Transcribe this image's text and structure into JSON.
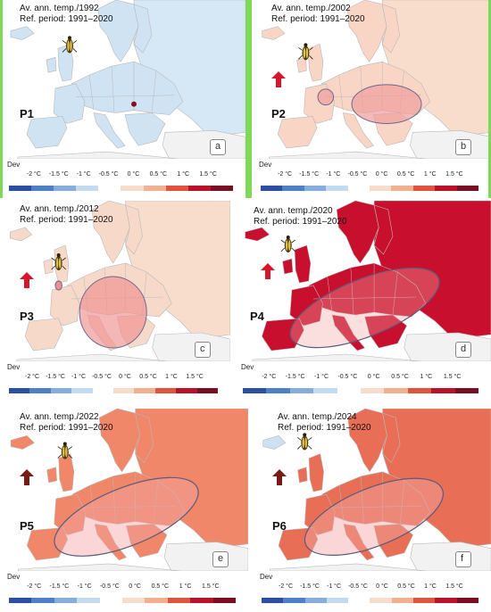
{
  "header_label": "Av. ann. temp./",
  "ref_period": "Ref. period: 1991–2020",
  "dev_label": "Dev",
  "legend_ticks": [
    "-2 °C",
    "-1.5 °C",
    "-1 °C",
    "-0.5 °C",
    "0 °C",
    "0.5 °C",
    "1 °C",
    "1.5 °C"
  ],
  "legend_colors": [
    "#2a4fa3",
    "#4f7fc4",
    "#86aedc",
    "#c3dbef",
    "#ffffff",
    "#f6dccb",
    "#f1b08f",
    "#e0533e",
    "#b8132b",
    "#7a0f23"
  ],
  "panels": [
    {
      "id": "P1",
      "year": "1992",
      "sub": "a",
      "fill": "#cfe3f3",
      "arrow": false,
      "blob": false
    },
    {
      "id": "P2",
      "year": "2002",
      "sub": "b",
      "fill": "#f8d5c5",
      "arrow": true,
      "blob": true
    },
    {
      "id": "P3",
      "year": "2012",
      "sub": "c",
      "fill": "#f6d9c8",
      "arrow": true,
      "blob": true
    },
    {
      "id": "P4",
      "year": "2020",
      "sub": "d",
      "fill": "#c8102e",
      "arrow": true,
      "blob": true
    },
    {
      "id": "P5",
      "year": "2022",
      "sub": "e",
      "fill": "#f08768",
      "arrow": true,
      "blob": true
    },
    {
      "id": "P6",
      "year": "2024",
      "sub": "f",
      "fill": "#e86f55",
      "arrow": true,
      "blob": true
    }
  ]
}
